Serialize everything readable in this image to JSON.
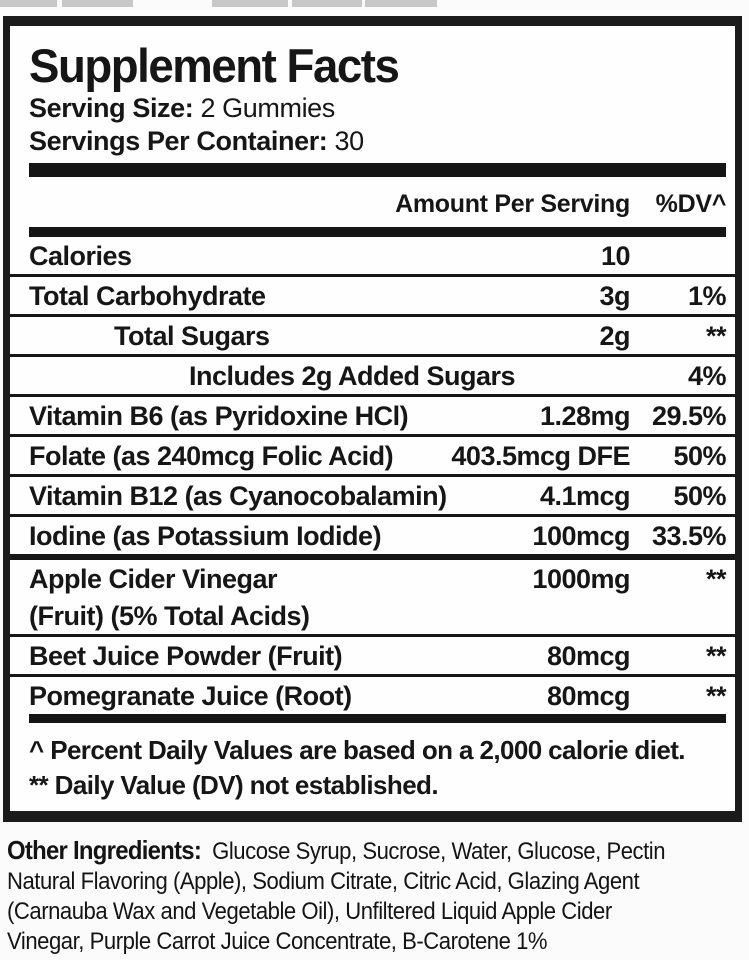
{
  "colors": {
    "text": "#161616",
    "rule": "#151515",
    "fragment": "#c7c7c7"
  },
  "label": {
    "title": "Supplement Facts",
    "serving_size_label": "Serving Size:",
    "serving_size_value": "2 Gummies",
    "servings_per_container_label": "Servings Per Container:",
    "servings_per_container_value": "30",
    "column_headers": {
      "amount": "Amount Per Serving",
      "dv": "%DV^"
    },
    "rows": [
      {
        "name": "Calories",
        "amount": "10",
        "dv": "",
        "indent": 0,
        "separator": "thin"
      },
      {
        "name": "Total Carbohydrate",
        "amount": "3g",
        "dv": "1%",
        "indent": 0,
        "separator": "thin"
      },
      {
        "name": "Total Sugars",
        "amount": "2g",
        "dv": "**",
        "indent": 1,
        "separator": "thin"
      },
      {
        "name": "Includes 2g Added Sugars",
        "amount": "",
        "dv": "4%",
        "indent": 2,
        "separator": "thin"
      },
      {
        "name": "Vitamin B6 (as Pyridoxine HCl)",
        "amount": "1.28mg",
        "dv": "29.5%",
        "indent": 0,
        "separator": "thin"
      },
      {
        "name": "Folate (as 240mcg Folic Acid)",
        "amount": "403.5mcg DFE",
        "dv": "50%",
        "indent": 0,
        "separator": "thin"
      },
      {
        "name": "Vitamin B12 (as Cyanocobalamin)",
        "amount": "4.1mcg",
        "dv": "50%",
        "indent": 0,
        "separator": "thin"
      },
      {
        "name": "Iodine (as Potassium Iodide)",
        "amount": "100mcg",
        "dv": "33.5%",
        "indent": 0,
        "separator": "thick"
      },
      {
        "name": "Apple Cider Vinegar",
        "name2": "(Fruit) (5% Total Acids)",
        "amount": "1000mg",
        "dv": "**",
        "indent": 0,
        "separator": "thin"
      },
      {
        "name": "Beet Juice Powder (Fruit)",
        "amount": "80mcg",
        "dv": "**",
        "indent": 0,
        "separator": "thin"
      },
      {
        "name": "Pomegranate Juice (Root)",
        "amount": "80mcg",
        "dv": "**",
        "indent": 0,
        "separator": "none"
      }
    ],
    "footnotes": [
      "^ Percent Daily Values are based on a 2,000 calorie diet.",
      "** Daily Value (DV) not established."
    ]
  },
  "other_ingredients": {
    "label": "Other Ingredients:",
    "lines": [
      "Glucose Syrup, Sucrose, Water, Glucose, Pectin",
      "Natural Flavoring (Apple), Sodium Citrate, Citric Acid, Glazing Agent",
      "(Carnauba Wax and Vegetable Oil), Unfiltered Liquid Apple Cider",
      "Vinegar, Purple Carrot Juice Concentrate, B-Carotene 1%"
    ]
  }
}
